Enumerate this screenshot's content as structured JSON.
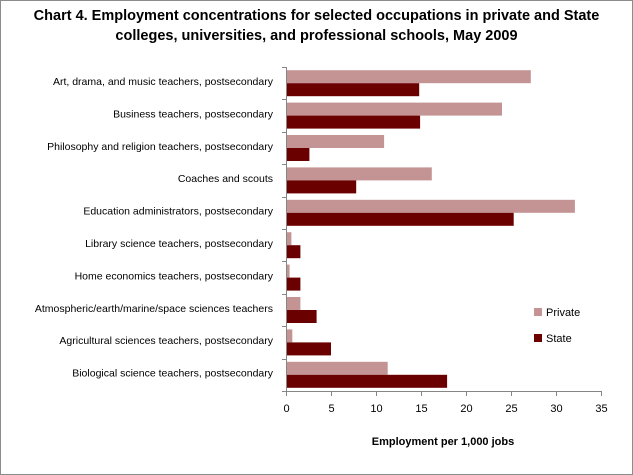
{
  "chart_data": {
    "type": "bar",
    "orientation": "horizontal",
    "title_line1": "Chart 4. Employment concentrations for selected occupations in private and State",
    "title_line2": "colleges, universities, and professional schools, May 2009",
    "xlabel": "Employment per 1,000 jobs",
    "ylabel": "",
    "xlim": [
      0,
      35
    ],
    "xticks": [
      "0",
      "5",
      "10",
      "15",
      "20",
      "25",
      "30",
      "35"
    ],
    "grid": false,
    "legend_position": "right",
    "categories": [
      "Art, drama, and music teachers, postsecondary",
      "Business teachers, postsecondary",
      "Philosophy and religion teachers, postsecondary",
      "Coaches and scouts",
      "Education administrators, postsecondary",
      "Library science teachers, postsecondary",
      "Home economics teachers, postsecondary",
      "Atmospheric/earth/marine/space sciences teachers",
      "Agricultural sciences teachers, postsecondary",
      "Biological science teachers, postsecondary"
    ],
    "series": [
      {
        "name": "Private",
        "color": "#c49494",
        "values": [
          27.2,
          24.0,
          10.9,
          16.2,
          32.1,
          0.6,
          0.4,
          1.6,
          0.7,
          11.3
        ]
      },
      {
        "name": "State",
        "color": "#6b0000",
        "values": [
          14.8,
          14.9,
          2.6,
          7.8,
          25.3,
          1.6,
          1.6,
          3.4,
          5.0,
          17.9
        ]
      }
    ]
  }
}
